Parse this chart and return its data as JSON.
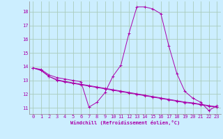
{
  "xlabel": "Windchill (Refroidissement éolien,°C)",
  "background_color": "#cceeff",
  "grid_color": "#aaccbb",
  "line_color": "#aa00aa",
  "xlim": [
    -0.5,
    23.5
  ],
  "ylim": [
    10.55,
    18.75
  ],
  "yticks": [
    11,
    12,
    13,
    14,
    15,
    16,
    17,
    18
  ],
  "xticks": [
    0,
    1,
    2,
    3,
    4,
    5,
    6,
    7,
    8,
    9,
    10,
    11,
    12,
    13,
    14,
    15,
    16,
    17,
    18,
    19,
    20,
    21,
    22,
    23
  ],
  "series": [
    [
      13.9,
      13.8,
      13.4,
      13.2,
      13.1,
      13.0,
      12.9,
      11.05,
      11.4,
      12.1,
      13.3,
      14.1,
      16.4,
      18.35,
      18.35,
      18.2,
      17.85,
      15.5,
      13.5,
      12.2,
      11.7,
      11.4,
      10.8,
      11.15
    ],
    [
      13.9,
      13.75,
      13.3,
      13.0,
      12.88,
      12.78,
      12.68,
      12.58,
      12.48,
      12.38,
      12.28,
      12.18,
      12.08,
      11.98,
      11.88,
      11.78,
      11.68,
      11.58,
      11.48,
      11.38,
      11.32,
      11.22,
      11.12,
      11.05
    ],
    [
      13.9,
      13.72,
      13.28,
      13.05,
      12.92,
      12.82,
      12.72,
      12.62,
      12.52,
      12.42,
      12.32,
      12.22,
      12.12,
      12.02,
      11.92,
      11.82,
      11.72,
      11.62,
      11.52,
      11.42,
      11.36,
      11.26,
      11.16,
      11.08
    ]
  ]
}
